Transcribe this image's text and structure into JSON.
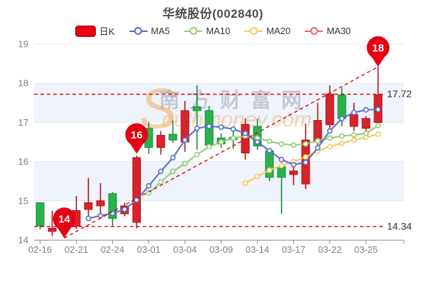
{
  "title": "华统股份(002840)",
  "legend": {
    "items": [
      {
        "label": "日K",
        "color": "#e60012",
        "type": "rect"
      },
      {
        "label": "MA5",
        "color": "#5470c6",
        "type": "line"
      },
      {
        "label": "MA10",
        "color": "#91cc75",
        "type": "line"
      },
      {
        "label": "MA20",
        "color": "#fac858",
        "type": "line"
      },
      {
        "label": "MA30",
        "color": "#ee6666",
        "type": "line"
      }
    ]
  },
  "watermark": {
    "initial": "S",
    "cn": "南方财富网",
    "en": "outhmoney.com"
  },
  "colors": {
    "up_fill": "#d7232c",
    "up_stroke": "#a8121b",
    "down_fill": "#2bb24c",
    "down_stroke": "#0e8a3a",
    "grid": "#e3e8f2",
    "band": "#eff3fb",
    "axis": "#8c8c8c",
    "tick_text": "#7f7f7f",
    "ref_line": "#e60000",
    "marker_fill": "#e60012",
    "ref_label_text": "#333333"
  },
  "chart_data": {
    "type": "candlestick",
    "title": "华统股份(002840)",
    "ylim": [
      14,
      19
    ],
    "y_ticks": [
      14,
      15,
      16,
      17,
      18,
      19
    ],
    "grid": true,
    "legend_position": "top",
    "categories": [
      "02-16",
      "02-17",
      "02-18",
      "02-21",
      "02-22",
      "02-23",
      "02-24",
      "02-25",
      "02-28",
      "03-01",
      "03-02",
      "03-03",
      "03-04",
      "03-07",
      "03-08",
      "03-09",
      "03-10",
      "03-11",
      "03-14",
      "03-15",
      "03-16",
      "03-17",
      "03-18",
      "03-21",
      "03-22",
      "03-23",
      "03-24",
      "03-25",
      "03-28"
    ],
    "x_label_indices": [
      0,
      3,
      6,
      9,
      12,
      15,
      18,
      21,
      24,
      27
    ],
    "kline_ohlc": [
      {
        "date": "02-16",
        "open": 14.95,
        "close": 14.36,
        "low": 14.27,
        "high": 14.95
      },
      {
        "date": "02-17",
        "open": 14.22,
        "close": 14.3,
        "low": 14.1,
        "high": 14.75
      },
      {
        "date": "02-18",
        "open": 14.3,
        "close": 14.42,
        "low": 14.05,
        "high": 14.55
      },
      {
        "date": "02-21",
        "open": 14.35,
        "close": 14.75,
        "low": 14.28,
        "high": 15.12
      },
      {
        "date": "02-22",
        "open": 14.78,
        "close": 14.95,
        "low": 14.6,
        "high": 15.58
      },
      {
        "date": "02-23",
        "open": 14.87,
        "close": 15.0,
        "low": 14.6,
        "high": 15.45
      },
      {
        "date": "02-24",
        "open": 15.18,
        "close": 14.55,
        "low": 14.35,
        "high": 15.22
      },
      {
        "date": "02-25",
        "open": 14.67,
        "close": 14.87,
        "low": 14.6,
        "high": 14.95
      },
      {
        "date": "02-28",
        "open": 14.45,
        "close": 16.1,
        "low": 14.3,
        "high": 16.15
      },
      {
        "date": "03-01",
        "open": 16.85,
        "close": 16.36,
        "low": 16.2,
        "high": 17.0
      },
      {
        "date": "03-02",
        "open": 16.36,
        "close": 16.67,
        "low": 16.18,
        "high": 16.78
      },
      {
        "date": "03-03",
        "open": 16.7,
        "close": 16.55,
        "low": 16.48,
        "high": 17.05
      },
      {
        "date": "03-04",
        "open": 16.5,
        "close": 17.3,
        "low": 16.25,
        "high": 17.55
      },
      {
        "date": "03-07",
        "open": 17.4,
        "close": 17.3,
        "low": 16.3,
        "high": 17.95
      },
      {
        "date": "03-08",
        "open": 17.3,
        "close": 16.42,
        "low": 16.33,
        "high": 17.42
      },
      {
        "date": "03-09",
        "open": 16.6,
        "close": 16.45,
        "low": 16.35,
        "high": 16.72
      },
      {
        "date": "03-10",
        "open": 16.62,
        "close": 16.56,
        "low": 16.33,
        "high": 16.87
      },
      {
        "date": "03-11",
        "open": 16.22,
        "close": 16.95,
        "low": 16.05,
        "high": 17.1
      },
      {
        "date": "03-14",
        "open": 16.9,
        "close": 16.4,
        "low": 16.3,
        "high": 17.1
      },
      {
        "date": "03-15",
        "open": 16.28,
        "close": 15.6,
        "low": 15.5,
        "high": 16.35
      },
      {
        "date": "03-16",
        "open": 15.87,
        "close": 15.6,
        "low": 14.67,
        "high": 15.9
      },
      {
        "date": "03-17",
        "open": 15.67,
        "close": 15.76,
        "low": 15.4,
        "high": 15.88
      },
      {
        "date": "03-18",
        "open": 15.43,
        "close": 16.55,
        "low": 15.3,
        "high": 16.97
      },
      {
        "date": "03-21",
        "open": 16.5,
        "close": 17.05,
        "low": 16.36,
        "high": 17.5
      },
      {
        "date": "03-22",
        "open": 16.94,
        "close": 17.72,
        "low": 16.8,
        "high": 17.95
      },
      {
        "date": "03-23",
        "open": 17.7,
        "close": 17.1,
        "low": 16.9,
        "high": 17.88
      },
      {
        "date": "03-24",
        "open": 16.9,
        "close": 17.2,
        "low": 16.78,
        "high": 17.5
      },
      {
        "date": "03-25",
        "open": 16.85,
        "close": 17.1,
        "low": 16.7,
        "high": 17.16
      },
      {
        "date": "03-28",
        "open": 17.0,
        "close": 17.7,
        "low": 16.94,
        "high": 18.42
      }
    ],
    "series": [
      {
        "name": "MA5",
        "color": "#5470c6",
        "start_index": 4,
        "values": [
          14.55,
          14.62,
          14.68,
          14.78,
          15.02,
          15.38,
          15.75,
          16.1,
          16.55,
          16.85,
          16.9,
          16.88,
          16.83,
          16.72,
          16.5,
          16.28,
          16.05,
          15.92,
          15.98,
          16.35,
          16.78,
          17.1,
          17.25,
          17.32,
          17.33
        ]
      },
      {
        "name": "MA10",
        "color": "#91cc75",
        "start_index": 9,
        "values": [
          15.2,
          15.48,
          15.75,
          15.95,
          16.18,
          16.38,
          16.5,
          16.6,
          16.65,
          16.6,
          16.52,
          16.45,
          16.42,
          16.45,
          16.53,
          16.6,
          16.65,
          16.68,
          16.72,
          16.92
        ]
      },
      {
        "name": "MA20",
        "color": "#fac858",
        "start_index": 17,
        "values": [
          15.45,
          15.62,
          15.78,
          15.9,
          16.0,
          16.12,
          16.27,
          16.38,
          16.47,
          16.55,
          16.62,
          16.7
        ]
      },
      {
        "name": "MA30",
        "color": "#ee6666",
        "start_index": 0,
        "values": [],
        "note": "below visible range"
      }
    ],
    "markers": [
      {
        "label": "14",
        "index": 2,
        "value": 14.05
      },
      {
        "label": "16",
        "index": 8,
        "value": 16.2
      },
      {
        "label": "18",
        "index": 28,
        "value": 18.42
      }
    ],
    "reference_lines": [
      {
        "type": "horizontal",
        "value": 17.72,
        "label": "17.72"
      },
      {
        "type": "horizontal",
        "value": 14.34,
        "label": "14.34"
      },
      {
        "type": "trend",
        "from_marker": 0,
        "to_marker": 2
      }
    ]
  }
}
